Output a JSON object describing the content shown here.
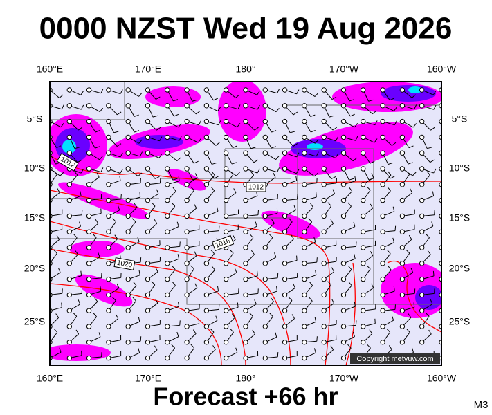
{
  "header": {
    "title": "0000 NZST Wed 19 Aug 2026"
  },
  "axes": {
    "top": [
      "160°E",
      "170°E",
      "180°",
      "170°W",
      "160°W"
    ],
    "bottom": [
      "160°E",
      "170°E",
      "180°",
      "170°W",
      "160°W"
    ],
    "left": [
      "5°S",
      "10°S",
      "15°S",
      "20°S",
      "25°S"
    ],
    "right": [
      "5°S",
      "10°S",
      "15°S",
      "20°S",
      "25°S"
    ]
  },
  "isobars": {
    "labels": [
      "1012",
      "1012",
      "1016",
      "1020"
    ]
  },
  "copyright": "Copyright metvuw.com",
  "footer": {
    "forecast": "Forecast +66 hr",
    "model": "M3"
  }
}
